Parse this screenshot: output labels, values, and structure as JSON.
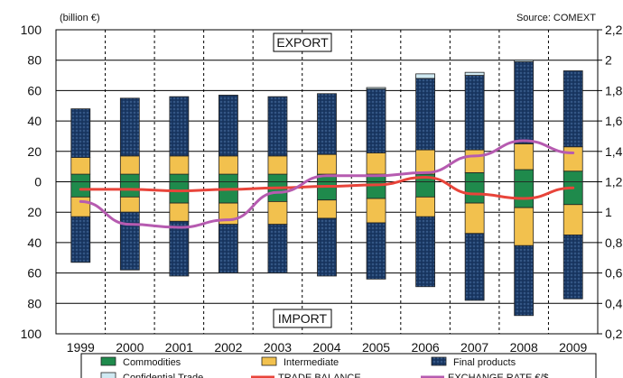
{
  "chart_data": {
    "type": "bar",
    "unit_label": "(billion €)",
    "source": "Source: COMEXT",
    "export_label": "EXPORT",
    "import_label": "IMPORT",
    "categories": [
      "1999",
      "2000",
      "2001",
      "2002",
      "2003",
      "2004",
      "2005",
      "2006",
      "2007",
      "2008",
      "2009"
    ],
    "y_left": {
      "min": -100,
      "max": 100,
      "step": 20,
      "tick_labels": [
        "100",
        "80",
        "60",
        "40",
        "20",
        "0",
        "20",
        "40",
        "60",
        "80",
        "100"
      ]
    },
    "y_right": {
      "min": 0.2,
      "max": 2.2,
      "step": 0.2,
      "tick_labels": [
        "0,2",
        "0,4",
        "0,6",
        "0,8",
        "1",
        "1,2",
        "1,4",
        "1,6",
        "1,8",
        "2",
        "2,2"
      ]
    },
    "stacked_series": [
      {
        "key": "commodities",
        "name": "Commodities",
        "color": "#1f8a4c",
        "export": [
          5,
          5,
          5,
          5,
          5,
          5,
          5,
          5,
          6,
          8,
          7
        ],
        "import": [
          10,
          10,
          14,
          14,
          13,
          12,
          11,
          10,
          14,
          17,
          15
        ]
      },
      {
        "key": "intermediate",
        "name": "Intermediate",
        "color": "#f2c14e",
        "export": [
          11,
          12,
          12,
          12,
          12,
          13,
          14,
          16,
          15,
          17,
          16
        ],
        "import": [
          13,
          10,
          12,
          14,
          15,
          12,
          16,
          13,
          20,
          25,
          20
        ]
      },
      {
        "key": "final_products",
        "name": "Final products",
        "color": "#1b3a66",
        "export": [
          32,
          38,
          39,
          40,
          39,
          40,
          42,
          47,
          49,
          54,
          50
        ],
        "import": [
          30,
          38,
          36,
          32,
          32,
          38,
          37,
          46,
          44,
          46,
          42
        ]
      },
      {
        "key": "confidential_trade",
        "name": "Confidential Trade",
        "color": "#cfe9f2",
        "export": [
          0,
          0,
          0,
          0,
          0,
          0,
          1,
          3,
          2,
          1,
          0
        ],
        "import": [
          0,
          0,
          0,
          0,
          0,
          0,
          0,
          0,
          0,
          0,
          0
        ]
      }
    ],
    "line_series": [
      {
        "key": "trade_balance",
        "name": "TRADE BALANCE",
        "axis": "left",
        "color": "#e8443a",
        "values": [
          -5,
          -5,
          -6,
          -5,
          -4,
          -3,
          -2,
          3,
          -8,
          -11,
          -4
        ]
      },
      {
        "key": "exchange_rate",
        "name": "EXCHANGE RATE €/$",
        "axis": "right",
        "color": "#b65bb0",
        "values": [
          1.07,
          0.92,
          0.9,
          0.95,
          1.13,
          1.24,
          1.24,
          1.26,
          1.37,
          1.47,
          1.39
        ]
      }
    ],
    "legend": [
      "Commodities",
      "Intermediate",
      "Final products",
      "Confidential Trade",
      "TRADE BALANCE",
      "EXCHANGE RATE €/$"
    ],
    "legend_position": "bottom",
    "grid": true
  }
}
